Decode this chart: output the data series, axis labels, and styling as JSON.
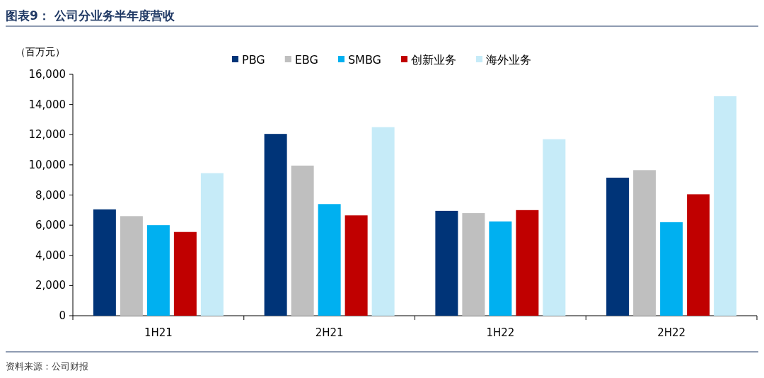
{
  "chart_data": {
    "type": "bar",
    "title": "图表9：  公司分业务半年度营收",
    "ylabel": "（百万元）",
    "categories": [
      "1H21",
      "2H21",
      "1H22",
      "2H22"
    ],
    "series": [
      {
        "name": "PBG",
        "color": "#003478",
        "values": [
          7050,
          12050,
          6950,
          9150
        ]
      },
      {
        "name": "EBG",
        "color": "#bfbfbf",
        "values": [
          6600,
          9950,
          6800,
          9650
        ]
      },
      {
        "name": "SMBG",
        "color": "#00b0f0",
        "values": [
          6000,
          7400,
          6250,
          6200
        ]
      },
      {
        "name": "创新业务",
        "color": "#c00000",
        "values": [
          5550,
          6650,
          7000,
          8050
        ]
      },
      {
        "name": "海外业务",
        "color": "#c6ebf8",
        "values": [
          9450,
          12500,
          11700,
          14550
        ]
      }
    ],
    "ylim": [
      0,
      16000
    ],
    "yticks": [
      {
        "value": 0,
        "label": "0"
      },
      {
        "value": 2000,
        "label": "2,000"
      },
      {
        "value": 4000,
        "label": "4,000"
      },
      {
        "value": 6000,
        "label": "6,000"
      },
      {
        "value": 8000,
        "label": "8,000"
      },
      {
        "value": 10000,
        "label": "10,000"
      },
      {
        "value": 12000,
        "label": "12,000"
      },
      {
        "value": 14000,
        "label": "14,000"
      },
      {
        "value": 16000,
        "label": "16,000"
      }
    ],
    "legend": "top",
    "grid": false,
    "annotations": [
      "资料来源：公司财报"
    ]
  }
}
